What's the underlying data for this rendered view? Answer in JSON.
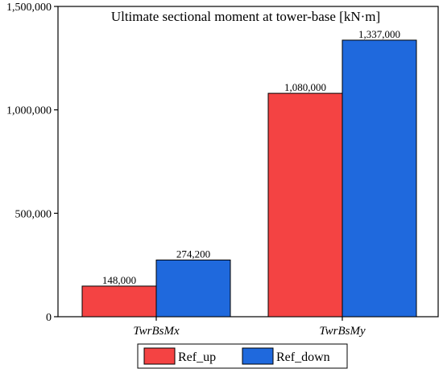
{
  "chart_data": {
    "type": "bar",
    "title": "Ultimate sectional moment at tower-base [kN·m]",
    "xlabel": "",
    "ylabel": "",
    "categories": [
      "TwrBsMx",
      "TwrBsMy"
    ],
    "series": [
      {
        "name": "Ref_up",
        "values": [
          148000,
          1080000
        ],
        "labels": [
          "148,000",
          "1,080,000"
        ],
        "color": "#f44343"
      },
      {
        "name": "Ref_down",
        "values": [
          274200,
          1337000
        ],
        "labels": [
          "274,200",
          "1,337,000"
        ],
        "color": "#1f69dd"
      }
    ],
    "ylim": [
      0,
      1500000
    ],
    "yticks": [
      0,
      500000,
      1000000,
      1500000
    ],
    "ytick_labels": [
      "0",
      "500,000",
      "1,000,000",
      "1,500,000"
    ],
    "grid": false,
    "legend_position": "bottom"
  }
}
